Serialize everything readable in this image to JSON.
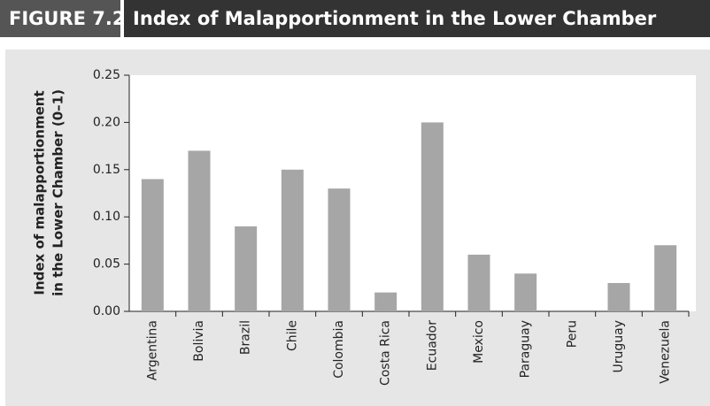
{
  "chart_data": {
    "type": "bar",
    "figure_label": "FIGURE 7.2",
    "title": "Index of Malapportionment in the Lower Chamber",
    "ylabel": [
      "Index of malapportionment",
      "in the Lower Chamber (0–1)"
    ],
    "categories": [
      "Argentina",
      "Bolivia",
      "Brazil",
      "Chile",
      "Colombia",
      "Costa Rica",
      "Ecuador",
      "Mexico",
      "Paraguay",
      "Peru",
      "Uruguay",
      "Venezuela"
    ],
    "values": [
      0.14,
      0.17,
      0.09,
      0.15,
      0.13,
      0.02,
      0.2,
      0.06,
      0.04,
      0,
      0.03,
      0.07
    ],
    "color": "#a6a6a6",
    "ylim": [
      0,
      0.25
    ],
    "yticks": [
      {
        "value": 0,
        "label": "0.00"
      },
      {
        "value": 0.05,
        "label": "0.05"
      },
      {
        "value": 0.1,
        "label": "0.10"
      },
      {
        "value": 0.15,
        "label": "0.15"
      },
      {
        "value": 0.2,
        "label": "0.20"
      },
      {
        "value": 0.25,
        "label": "0.25"
      }
    ],
    "grid": false
  }
}
